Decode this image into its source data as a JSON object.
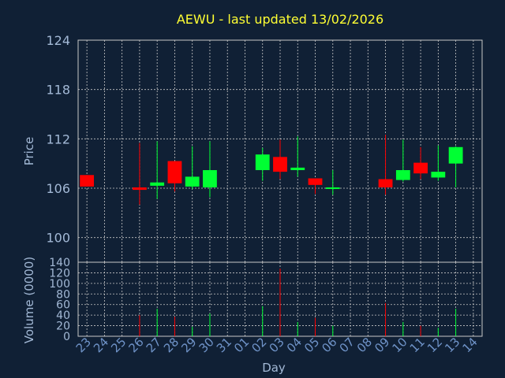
{
  "chart_data": {
    "type": "candlestick",
    "title": "AEWU - last updated 13/02/2026",
    "xlabel": "Day",
    "ylabel_price": "Price",
    "ylabel_volume": "Volume (0000)",
    "price_ylim": [
      97,
      124
    ],
    "price_ticks": [
      "124",
      "118",
      "112",
      "106",
      "100"
    ],
    "volume_ylim": [
      0,
      140
    ],
    "volume_ticks": [
      "140",
      "120",
      "100",
      "80",
      "60",
      "40",
      "20",
      "0"
    ],
    "x_tick_labels": [
      "23",
      "24",
      "25",
      "26",
      "27",
      "28",
      "29",
      "30",
      "31",
      "01",
      "02",
      "03",
      "04",
      "05",
      "06",
      "07",
      "08",
      "09",
      "10",
      "11",
      "12",
      "13",
      "14"
    ],
    "grid": true,
    "colors": {
      "background": "#102035",
      "grid": "#c8c8c8",
      "up": "#00ff33",
      "down": "#ff0000",
      "title": "#ffff33",
      "labels": "#a3b9d6"
    },
    "candles": [
      {
        "day": "23",
        "open": 107.6,
        "high": 107.6,
        "low": 106.2,
        "close": 106.2,
        "volume": 0
      },
      {
        "day": "26",
        "open": 106.1,
        "high": 111.5,
        "low": 104.0,
        "close": 105.8,
        "volume": 40
      },
      {
        "day": "27",
        "open": 106.3,
        "high": 111.7,
        "low": 104.7,
        "close": 106.7,
        "volume": 52
      },
      {
        "day": "28",
        "open": 109.3,
        "high": 109.3,
        "low": 105.6,
        "close": 106.6,
        "volume": 37
      },
      {
        "day": "29",
        "open": 106.2,
        "high": 111.1,
        "low": 105.9,
        "close": 107.4,
        "volume": 18
      },
      {
        "day": "30",
        "open": 106.1,
        "high": 111.7,
        "low": 104.9,
        "close": 108.2,
        "volume": 43
      },
      {
        "day": "02",
        "open": 108.2,
        "high": 110.9,
        "low": 106.9,
        "close": 110.1,
        "volume": 57
      },
      {
        "day": "03",
        "open": 109.8,
        "high": 111.9,
        "low": 107.1,
        "close": 108.0,
        "volume": 128
      },
      {
        "day": "04",
        "open": 108.2,
        "high": 112.3,
        "low": 107.4,
        "close": 108.5,
        "volume": 27
      },
      {
        "day": "05",
        "open": 107.2,
        "high": 107.2,
        "low": 105.3,
        "close": 106.4,
        "volume": 35
      },
      {
        "day": "06",
        "open": 106.0,
        "high": 108.2,
        "low": 105.2,
        "close": 106.1,
        "volume": 20
      },
      {
        "day": "09",
        "open": 107.1,
        "high": 112.5,
        "low": 105.2,
        "close": 106.1,
        "volume": 63
      },
      {
        "day": "10",
        "open": 107.0,
        "high": 111.9,
        "low": 106.8,
        "close": 108.2,
        "volume": 27
      },
      {
        "day": "11",
        "open": 109.1,
        "high": 111.0,
        "low": 107.1,
        "close": 107.8,
        "volume": 20
      },
      {
        "day": "12",
        "open": 107.3,
        "high": 111.2,
        "low": 106.9,
        "close": 108.0,
        "volume": 16
      },
      {
        "day": "13",
        "open": 109.0,
        "high": 111.1,
        "low": 106.1,
        "close": 111.0,
        "volume": 52
      }
    ]
  }
}
